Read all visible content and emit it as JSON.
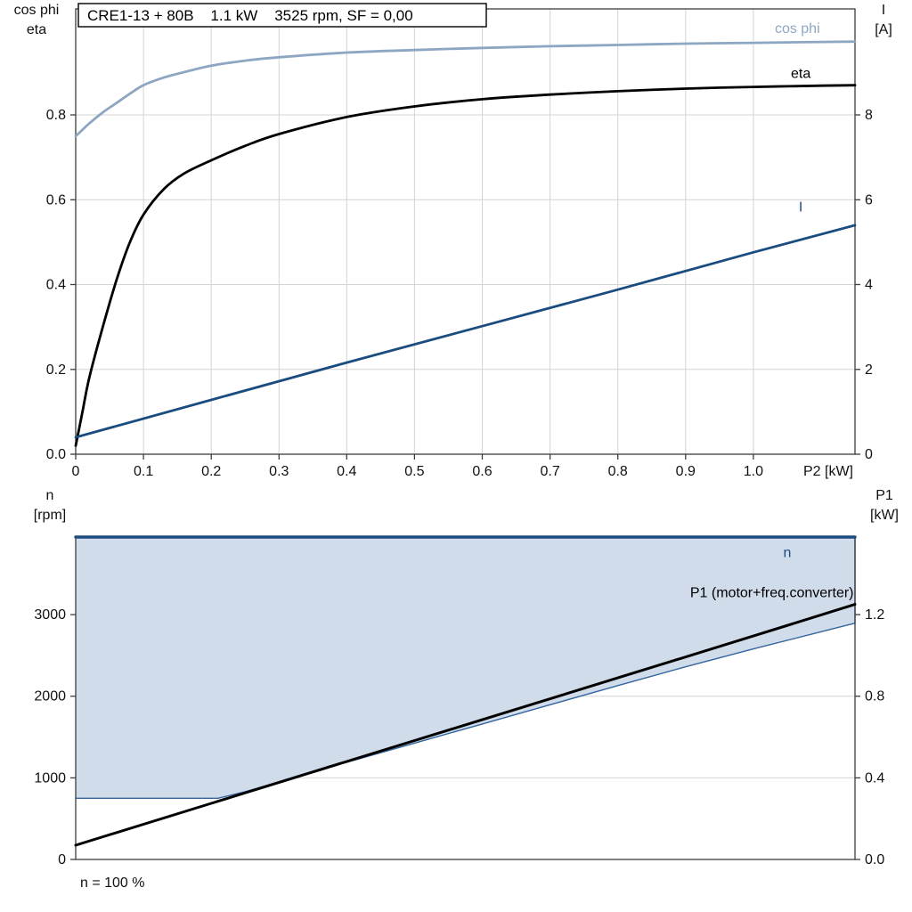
{
  "header": {
    "title": "CRE1-13 + 80B    1.1 kW    3525 rpm, SF = 0,00"
  },
  "footer": {
    "note": "n = 100 %"
  },
  "colors": {
    "cos_phi": "#8da7c3",
    "eta": "#000000",
    "current": "#1b4c80",
    "speed": "#1b4c80",
    "p1": "#000000",
    "area_fill": "#ccd9e8",
    "area_edge": "#34659f",
    "grid": "#d4d4d4",
    "axis": "#3d3d3d",
    "text": "#111111"
  },
  "chart_data": [
    {
      "id": "motor-chart",
      "type": "line",
      "title": "CRE1-13 + 80B    1.1 kW    3525 rpm, SF = 0,00",
      "x_grid": true,
      "x_axis": {
        "label": "P2 [kW]",
        "min": 0,
        "max": 1.15,
        "ticks": [
          0,
          0.1,
          0.2,
          0.3,
          0.4,
          0.5,
          0.6,
          0.7,
          0.8,
          0.9,
          1.0
        ],
        "tick_labels": [
          "0",
          "0.1",
          "0.2",
          "0.3",
          "0.4",
          "0.5",
          "0.6",
          "0.7",
          "0.8",
          "0.9",
          "1.0"
        ]
      },
      "y_left": {
        "label_lines": [
          "cos phi",
          "eta"
        ],
        "min": 0,
        "max": 1.05,
        "ticks": [
          0,
          0.2,
          0.4,
          0.6,
          0.8
        ],
        "tick_labels": [
          "0.0",
          "0.2",
          "0.4",
          "0.6",
          "0.8"
        ]
      },
      "y_right": {
        "label_lines": [
          "I",
          "[A]"
        ],
        "min": 0,
        "max": 10.5,
        "ticks": [
          0,
          2,
          4,
          6,
          8
        ],
        "tick_labels": [
          "0",
          "2",
          "4",
          "6",
          "8"
        ]
      },
      "series": [
        {
          "name": "cos phi",
          "kind": "line",
          "smooth": true,
          "axis": "left",
          "color_key": "cos_phi",
          "width": 2.8,
          "x": [
            0,
            0.01,
            0.02,
            0.04,
            0.06,
            0.08,
            0.1,
            0.13,
            0.16,
            0.2,
            0.25,
            0.3,
            0.4,
            0.5,
            0.6,
            0.7,
            0.8,
            0.9,
            1.0,
            1.1,
            1.15
          ],
          "y": [
            0.75,
            0.765,
            0.78,
            0.806,
            0.828,
            0.85,
            0.87,
            0.888,
            0.901,
            0.916,
            0.928,
            0.936,
            0.947,
            0.953,
            0.958,
            0.962,
            0.965,
            0.968,
            0.97,
            0.972,
            0.973
          ],
          "label": {
            "text": "cos phi",
            "x": 1.065,
            "y": 0.993,
            "anchor": "middle"
          }
        },
        {
          "name": "eta",
          "kind": "line",
          "smooth": true,
          "axis": "left",
          "color_key": "eta",
          "width": 2.8,
          "x": [
            0,
            0.01,
            0.02,
            0.04,
            0.06,
            0.08,
            0.1,
            0.13,
            0.16,
            0.2,
            0.25,
            0.3,
            0.4,
            0.5,
            0.6,
            0.7,
            0.8,
            0.9,
            1.0,
            1.1,
            1.15
          ],
          "y": [
            0.02,
            0.1,
            0.18,
            0.3,
            0.41,
            0.5,
            0.565,
            0.625,
            0.662,
            0.693,
            0.727,
            0.755,
            0.795,
            0.82,
            0.837,
            0.848,
            0.856,
            0.862,
            0.866,
            0.869,
            0.87
          ],
          "label": {
            "text": "eta",
            "x": 1.07,
            "y": 0.887,
            "anchor": "middle"
          }
        },
        {
          "name": "I",
          "kind": "line",
          "smooth": false,
          "axis": "right",
          "color_key": "current",
          "width": 2.8,
          "x": [
            0,
            0.2,
            0.4,
            0.6,
            0.8,
            1.0,
            1.15
          ],
          "y": [
            0.4,
            1.28,
            2.16,
            3.02,
            3.88,
            4.76,
            5.4
          ],
          "label": {
            "text": "I",
            "x": 1.07,
            "y": 5.72,
            "anchor": "middle"
          }
        }
      ]
    },
    {
      "id": "speed-chart",
      "type": "area",
      "x_grid": false,
      "note": "n = 100 %",
      "x_axis": {
        "label": "",
        "min": 0,
        "max": 1.15,
        "ticks": [],
        "tick_labels": []
      },
      "y_left": {
        "label_lines": [
          "n",
          "[rpm]"
        ],
        "min": 0,
        "max": 3950,
        "ticks": [
          0,
          1000,
          2000,
          3000
        ],
        "tick_labels": [
          "0",
          "1000",
          "2000",
          "3000"
        ]
      },
      "y_right": {
        "label_lines": [
          "P1",
          "[kW]"
        ],
        "min": 0,
        "max": 1.58,
        "ticks": [
          0,
          0.4,
          0.8,
          1.2
        ],
        "tick_labels": [
          "0.0",
          "0.4",
          "0.8",
          "1.2"
        ]
      },
      "series": [
        {
          "name": "speed range",
          "kind": "area",
          "axis": "left",
          "color_key": "area_edge",
          "fill_key": "area_fill",
          "width": 1.4,
          "area_top": 3950,
          "x": [
            0,
            0.21,
            0.25,
            0.3,
            0.4,
            0.5,
            0.6,
            0.7,
            0.8,
            0.9,
            1.0,
            1.1,
            1.15
          ],
          "y": [
            750,
            750,
            830,
            950,
            1190,
            1425,
            1660,
            1895,
            2130,
            2360,
            2580,
            2790,
            2895
          ]
        },
        {
          "name": "P1 (motor+freq.converter)",
          "kind": "line",
          "smooth": false,
          "axis": "right",
          "color_key": "p1",
          "width": 3,
          "x": [
            0,
            0.2,
            0.4,
            0.6,
            0.8,
            1.0,
            1.15
          ],
          "y": [
            0.07,
            0.275,
            0.48,
            0.685,
            0.89,
            1.095,
            1.25
          ],
          "label": {
            "text": "P1 (motor+freq.converter)",
            "x": 1.148,
            "y": 1.285,
            "anchor": "end"
          }
        },
        {
          "name": "n",
          "kind": "line",
          "smooth": false,
          "axis": "left",
          "color_key": "speed",
          "width": 3.4,
          "x": [
            0,
            1.15
          ],
          "y": [
            3950,
            3950
          ],
          "label": {
            "text": "n",
            "x": 1.05,
            "y": 3705,
            "anchor": "middle"
          }
        }
      ]
    }
  ]
}
